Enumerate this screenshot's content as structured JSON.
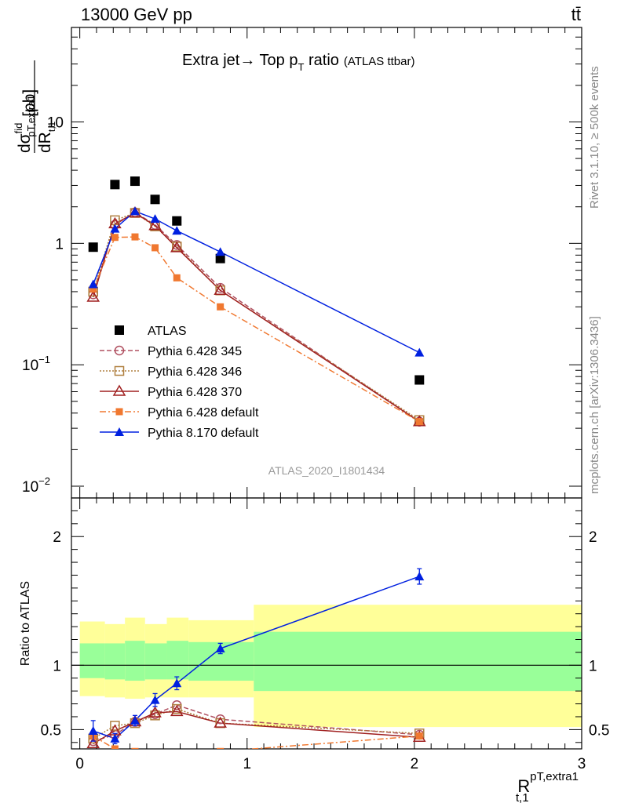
{
  "header": {
    "energy_label": "13000 GeV pp",
    "process_label": "tt̄",
    "side_rivet": "Rivet 3.1.10, ≥ 500k events",
    "side_mcplots": "mcplots.cern.ch [arXiv:1306.3436]",
    "analysis_id": "ATLAS_2020_I1801434"
  },
  "chart_data": [
    {
      "type": "scatter",
      "title": "Extra jet→ Top p",
      "title_sub": "T",
      "title_tail": " ratio",
      "title_small": "(ATLAS ttbar)",
      "ylabel_main": "dσ",
      "ylabel_sup": "fid",
      "ylabel_sub": "pT,extra1",
      "ylabel_den": "dR",
      "ylabel_den_sub": "t,1",
      "ylabel_unit": "[pb]",
      "yscale": "log",
      "ylim": [
        0.008,
        60
      ],
      "xlim": [
        -0.05,
        3.0
      ],
      "yticks": [
        {
          "value": 0.01,
          "base": "10",
          "exp": "−2"
        },
        {
          "value": 0.1,
          "base": "10",
          "exp": "−1"
        },
        {
          "value": 1,
          "base": "1",
          "exp": ""
        },
        {
          "value": 10,
          "base": "10",
          "exp": ""
        }
      ],
      "legend_position": "lower-left",
      "series": [
        {
          "name": "ATLAS",
          "color": "#000000",
          "marker": "square-filled",
          "line": "none",
          "x": [
            0.08,
            0.21,
            0.33,
            0.45,
            0.58,
            0.84,
            2.03
          ],
          "y": [
            0.93,
            3.05,
            3.25,
            2.3,
            1.53,
            0.75,
            0.075
          ]
        },
        {
          "name": "Pythia 6.428 345",
          "color": "#b05060",
          "marker": "circle-open",
          "line": "dashed",
          "x": [
            0.08,
            0.21,
            0.33,
            0.45,
            0.58,
            0.84,
            2.03
          ],
          "y": [
            0.38,
            1.42,
            1.8,
            1.42,
            0.97,
            0.43,
            0.034
          ]
        },
        {
          "name": "Pythia 6.428 346",
          "color": "#b08040",
          "marker": "square-open",
          "line": "dotted",
          "x": [
            0.08,
            0.21,
            0.33,
            0.45,
            0.58,
            0.84,
            2.03
          ],
          "y": [
            0.4,
            1.55,
            1.78,
            1.38,
            0.94,
            0.41,
            0.035
          ]
        },
        {
          "name": "Pythia 6.428 370",
          "color": "#a02020",
          "marker": "triangle-open",
          "line": "solid",
          "x": [
            0.08,
            0.21,
            0.33,
            0.45,
            0.58,
            0.84,
            2.03
          ],
          "y": [
            0.36,
            1.45,
            1.78,
            1.4,
            0.92,
            0.41,
            0.034
          ]
        },
        {
          "name": "Pythia 6.428 default",
          "color": "#f07830",
          "marker": "square-filled-small",
          "line": "dashdot",
          "x": [
            0.08,
            0.21,
            0.33,
            0.45,
            0.58,
            0.84,
            2.03
          ],
          "y": [
            0.42,
            1.12,
            1.13,
            0.92,
            0.52,
            0.3,
            0.034
          ]
        },
        {
          "name": "Pythia 8.170 default",
          "color": "#0020e0",
          "marker": "triangle-filled",
          "line": "solid",
          "x": [
            0.08,
            0.21,
            0.33,
            0.45,
            0.58,
            0.84,
            2.03
          ],
          "y": [
            0.46,
            1.32,
            1.84,
            1.59,
            1.27,
            0.85,
            0.126
          ]
        }
      ]
    },
    {
      "type": "scatter",
      "ylabel": "Ratio to ATLAS",
      "xlabel_main": "R",
      "xlabel_sup": "pT,extra1",
      "xlabel_sub": "t,1",
      "yscale": "linear",
      "ylim": [
        0.35,
        2.3
      ],
      "xlim": [
        -0.05,
        3.0
      ],
      "xticks": [
        0,
        1,
        2,
        3
      ],
      "yticks": [
        0.5,
        1,
        2
      ],
      "reference_line": 1,
      "bands": [
        {
          "x": [
            0.0,
            0.15,
            0.27,
            0.39,
            0.52,
            0.65,
            1.04,
            3.0
          ],
          "yellow_lo": [
            0.76,
            0.75,
            0.74,
            0.75,
            0.75,
            0.75,
            0.52
          ],
          "yellow_hi": [
            1.34,
            1.32,
            1.37,
            1.32,
            1.37,
            1.35,
            1.47
          ],
          "green_lo": [
            0.9,
            0.89,
            0.88,
            0.89,
            0.89,
            0.88,
            0.8
          ],
          "green_hi": [
            1.17,
            1.17,
            1.19,
            1.17,
            1.19,
            1.18,
            1.26
          ]
        }
      ],
      "series": [
        {
          "name": "Pythia 6.428 345",
          "x": [
            0.08,
            0.21,
            0.33,
            0.45,
            0.58,
            0.84,
            2.03
          ],
          "y": [
            0.41,
            0.46,
            0.56,
            0.62,
            0.69,
            0.58,
            0.46
          ]
        },
        {
          "name": "Pythia 6.428 346",
          "x": [
            0.08,
            0.21,
            0.33,
            0.45,
            0.58,
            0.84,
            2.03
          ],
          "y": [
            0.43,
            0.53,
            0.55,
            0.61,
            0.66,
            0.55,
            0.47
          ]
        },
        {
          "name": "Pythia 6.428 370",
          "x": [
            0.08,
            0.21,
            0.33,
            0.45,
            0.58,
            0.84,
            2.03
          ],
          "y": [
            0.39,
            0.49,
            0.56,
            0.63,
            0.64,
            0.55,
            0.44
          ]
        },
        {
          "name": "Pythia 6.428 default",
          "x": [
            0.08,
            0.21,
            0.33,
            0.45,
            0.58,
            0.84,
            2.03
          ],
          "y": [
            0.45,
            0.35,
            0.33,
            0.3,
            0.3,
            0.33,
            0.45
          ]
        },
        {
          "name": "Pythia 8.170 default",
          "x": [
            0.08,
            0.21,
            0.33,
            0.45,
            0.58,
            0.84,
            2.03
          ],
          "y": [
            0.49,
            0.43,
            0.57,
            0.73,
            0.86,
            1.13,
            1.69
          ],
          "yerr": [
            0.08,
            0.04,
            0.04,
            0.05,
            0.05,
            0.04,
            0.06
          ]
        }
      ]
    }
  ]
}
